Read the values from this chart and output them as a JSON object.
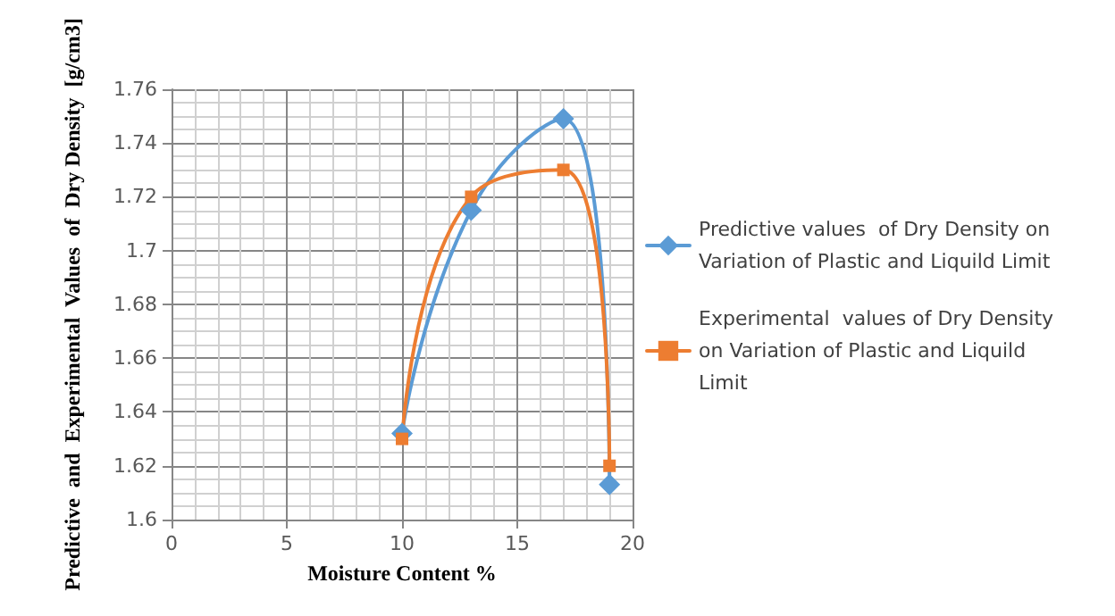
{
  "chart_data": {
    "type": "line",
    "xlabel": "Moisture Content %",
    "ylabel": "Predictive  and  Experimental  Values  of  Dry Density  [g/cm3]",
    "xlim": [
      0,
      20
    ],
    "xticks": [
      0,
      5,
      10,
      15,
      20
    ],
    "ylim": [
      1.6,
      1.76
    ],
    "yticks": [
      1.6,
      1.62,
      1.64,
      1.66,
      1.68,
      1.7,
      1.72,
      1.74,
      1.76
    ],
    "grid": true,
    "legend": "right",
    "line_style": "solid",
    "series": [
      {
        "name": "Predictive values  of Dry Density on Variation of Plastic and Liquild Limit",
        "color": "#5b9bd5",
        "marker": "diamond",
        "x": [
          10,
          13,
          17,
          19
        ],
        "values": [
          1.632,
          1.715,
          1.749,
          1.613
        ]
      },
      {
        "name": "Experimental  values of Dry Density on Variation of Plastic and Liquild Limit",
        "color": "#ed7d31",
        "marker": "square",
        "x": [
          10,
          13,
          17,
          19
        ],
        "values": [
          1.63,
          1.72,
          1.73,
          1.62
        ]
      }
    ]
  }
}
